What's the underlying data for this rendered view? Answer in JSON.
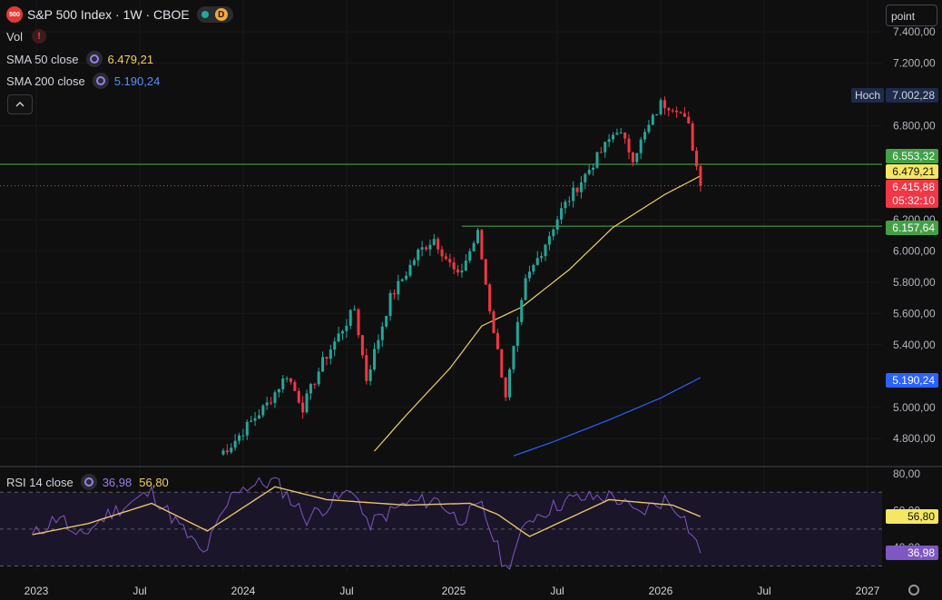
{
  "header": {
    "symbol_badge": "500",
    "title": "S&P 500 Index · 1W · CBOE",
    "status_letter": "D",
    "vol_label": "Vol",
    "vol_warning": "!",
    "sma50_label": "SMA 50 close",
    "sma50_value": "6.479,21",
    "sma200_label": "SMA 200 close",
    "sma200_value": "5.190,24",
    "collapse_icon": "chevron-up-icon"
  },
  "toolbar": {
    "scale_button": "point"
  },
  "price_axis": {
    "ticks": [
      "7.400,00",
      "7.200,00",
      "6.800,00",
      "6.200,00",
      "6.000,00",
      "5.800,00",
      "5.600,00",
      "5.400,00",
      "5.000,00",
      "4.800,00"
    ],
    "hoch_label": "Hoch",
    "hoch_value": "7.002,28",
    "tag_upper_line": "6.553,32",
    "tag_sma50": "6.479,21",
    "tag_last": "6.415,88",
    "tag_countdown": "05:32:10",
    "tag_lower_line": "6.157,64",
    "tag_sma200": "5.190,24"
  },
  "rsi": {
    "label": "RSI 14 close",
    "value": "36,98",
    "ma_value": "56,80",
    "axis_ticks": [
      "80,00",
      "60,00",
      "40,00"
    ],
    "tag_ma": "56,80",
    "tag_value": "36,98"
  },
  "time_axis": [
    "2023",
    "Jul",
    "2024",
    "Jul",
    "2025",
    "Jul",
    "2026",
    "Jul",
    "2027"
  ],
  "colors": {
    "up": "#26a69a",
    "down": "#f23645",
    "sma50": "#f0d060",
    "sma200": "#2962ff",
    "hline": "#4caf50",
    "rsi": "#7e57c2",
    "rsi_ma": "#e8c468",
    "background": "#0f0f0f"
  },
  "chart_data": [
    {
      "type": "candlestick",
      "title": "S&P 500 Index · 1W · CBOE",
      "ylim": [
        4700,
        7450
      ],
      "y_ticks": [
        4800,
        5000,
        5400,
        5600,
        5800,
        6000,
        6200,
        6800,
        7200,
        7400
      ],
      "horizontal_lines": [
        6553.32,
        6157.64
      ],
      "last_close": 6415.88,
      "high_marker": 7002.28,
      "x_ticks": [
        "2023",
        "Jul",
        "2024",
        "Jul",
        "2025",
        "Jul",
        "2026",
        "Jul",
        "2027"
      ],
      "anchors": [
        [
          "2023-11-20",
          4700
        ],
        [
          "2023-12-11",
          4760
        ],
        [
          "2024-01-08",
          4880
        ],
        [
          "2024-02-12",
          5020
        ],
        [
          "2024-03-18",
          5210
        ],
        [
          "2024-04-15",
          5000
        ],
        [
          "2024-05-20",
          5290
        ],
        [
          "2024-07-15",
          5630
        ],
        [
          "2024-08-05",
          5180
        ],
        [
          "2024-09-16",
          5700
        ],
        [
          "2024-10-14",
          5860
        ],
        [
          "2024-11-04",
          5990
        ],
        [
          "2024-12-02",
          6080
        ],
        [
          "2025-01-13",
          5830
        ],
        [
          "2025-02-17",
          6110
        ],
        [
          "2025-03-10",
          5630
        ],
        [
          "2025-04-07",
          5080
        ],
        [
          "2025-05-12",
          5800
        ],
        [
          "2025-06-09",
          6000
        ],
        [
          "2025-07-14",
          6260
        ],
        [
          "2025-09-08",
          6560
        ],
        [
          "2025-10-20",
          6780
        ],
        [
          "2025-11-17",
          6600
        ],
        [
          "2026-01-05",
          6940
        ],
        [
          "2026-02-02",
          6920
        ],
        [
          "2026-02-23",
          6790
        ],
        [
          "2026-03-16",
          6415.88
        ]
      ],
      "sma50_anchors": [
        [
          "2024-08-19",
          4720
        ],
        [
          "2024-10-14",
          4950
        ],
        [
          "2024-12-30",
          5250
        ],
        [
          "2025-02-24",
          5520
        ],
        [
          "2025-05-05",
          5640
        ],
        [
          "2025-07-28",
          5880
        ],
        [
          "2025-10-13",
          6150
        ],
        [
          "2026-01-12",
          6360
        ],
        [
          "2026-03-16",
          6479.21
        ]
      ],
      "sma200_anchors": [
        [
          "2025-04-21",
          4690
        ],
        [
          "2025-06-30",
          4780
        ],
        [
          "2025-10-06",
          4920
        ],
        [
          "2026-01-05",
          5060
        ],
        [
          "2026-03-16",
          5190.24
        ]
      ],
      "legend": [
        "SMA 50 close",
        "SMA 200 close"
      ]
    },
    {
      "type": "line",
      "title": "RSI 14 close",
      "ylim": [
        25,
        82
      ],
      "y_ticks": [
        80,
        60,
        40
      ],
      "band": [
        30,
        70
      ],
      "midline": 50,
      "anchors": [
        [
          "2022-12-26",
          46
        ],
        [
          "2023-02-13",
          58
        ],
        [
          "2023-03-13",
          44
        ],
        [
          "2023-05-08",
          58
        ],
        [
          "2023-07-24",
          70
        ],
        [
          "2023-10-23",
          36
        ],
        [
          "2023-12-18",
          72
        ],
        [
          "2024-02-26",
          76
        ],
        [
          "2024-04-22",
          56
        ],
        [
          "2024-07-15",
          72
        ],
        [
          "2024-08-05",
          52
        ],
        [
          "2024-10-14",
          64
        ],
        [
          "2024-12-09",
          66
        ],
        [
          "2025-01-13",
          55
        ],
        [
          "2025-02-24",
          62
        ],
        [
          "2025-04-07",
          28
        ],
        [
          "2025-05-19",
          56
        ],
        [
          "2025-07-28",
          66
        ],
        [
          "2025-10-13",
          68
        ],
        [
          "2025-11-24",
          58
        ],
        [
          "2026-01-12",
          66
        ],
        [
          "2026-02-09",
          60
        ],
        [
          "2026-03-16",
          36.98
        ]
      ],
      "ma_anchors": [
        [
          "2022-12-26",
          47
        ],
        [
          "2023-04-03",
          53
        ],
        [
          "2023-07-24",
          64
        ],
        [
          "2023-10-30",
          49
        ],
        [
          "2024-02-26",
          73
        ],
        [
          "2024-05-27",
          66
        ],
        [
          "2024-10-14",
          63
        ],
        [
          "2025-02-03",
          64
        ],
        [
          "2025-03-24",
          58
        ],
        [
          "2025-05-19",
          46
        ],
        [
          "2025-07-21",
          55
        ],
        [
          "2025-10-06",
          66
        ],
        [
          "2026-01-26",
          63
        ],
        [
          "2026-03-16",
          56.8
        ]
      ]
    }
  ]
}
